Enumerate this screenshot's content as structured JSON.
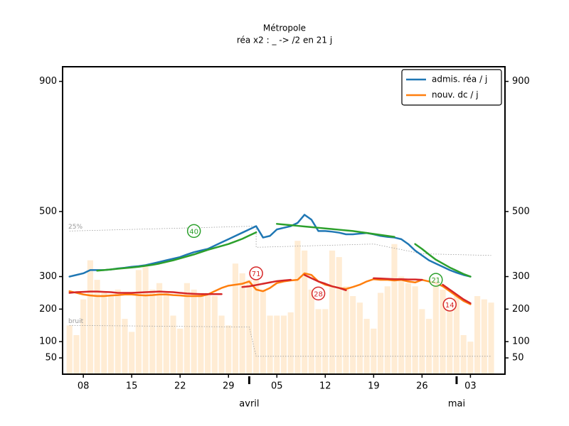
{
  "chart_data": {
    "type": "combo",
    "title": "Métropole",
    "subtitle": "réa x2 : _ -> /2 en 21 j",
    "x": [
      "03-06",
      "03-07",
      "03-08",
      "03-09",
      "03-10",
      "03-11",
      "03-12",
      "03-13",
      "03-14",
      "03-15",
      "03-16",
      "03-17",
      "03-18",
      "03-19",
      "03-20",
      "03-21",
      "03-22",
      "03-23",
      "03-24",
      "03-25",
      "03-26",
      "03-27",
      "03-28",
      "03-29",
      "03-30",
      "03-31",
      "04-01",
      "04-02",
      "04-03",
      "04-04",
      "04-05",
      "04-06",
      "04-07",
      "04-08",
      "04-09",
      "04-10",
      "04-11",
      "04-12",
      "04-13",
      "04-14",
      "04-15",
      "04-16",
      "04-17",
      "04-18",
      "04-19",
      "04-20",
      "04-21",
      "04-22",
      "04-23",
      "04-24",
      "04-25",
      "04-26",
      "04-27",
      "04-28",
      "04-29",
      "04-30",
      "05-01",
      "05-02",
      "05-03",
      "05-04",
      "05-05",
      "05-06"
    ],
    "bars": {
      "color": "#ffe9cc",
      "values": [
        150,
        120,
        230,
        350,
        290,
        250,
        240,
        260,
        170,
        130,
        320,
        330,
        260,
        280,
        250,
        180,
        140,
        280,
        260,
        250,
        250,
        240,
        180,
        150,
        340,
        310,
        290,
        290,
        260,
        180,
        180,
        180,
        190,
        410,
        380,
        260,
        200,
        200,
        380,
        360,
        270,
        240,
        220,
        170,
        140,
        250,
        270,
        400,
        300,
        280,
        270,
        200,
        170,
        300,
        260,
        220,
        240,
        120,
        100,
        240,
        230,
        220
      ]
    },
    "series": [
      {
        "name": "admis. réa / j",
        "color": "#1f77b4",
        "values": [
          300,
          305,
          310,
          320,
          320,
          320,
          322,
          325,
          327,
          330,
          332,
          335,
          340,
          345,
          350,
          355,
          360,
          368,
          375,
          380,
          385,
          395,
          405,
          415,
          425,
          435,
          445,
          455,
          420,
          425,
          445,
          450,
          455,
          465,
          490,
          475,
          440,
          440,
          438,
          435,
          430,
          430,
          432,
          434,
          430,
          425,
          422,
          420,
          415,
          400,
          380,
          365,
          350,
          340,
          330,
          320,
          312,
          305,
          300,
          null,
          null,
          null
        ]
      },
      {
        "name": "nouv. dc / j",
        "color": "#ff7f0e",
        "values": [
          255,
          250,
          245,
          242,
          240,
          240,
          242,
          243,
          245,
          245,
          243,
          242,
          243,
          245,
          245,
          243,
          242,
          240,
          240,
          240,
          245,
          255,
          265,
          272,
          275,
          278,
          285,
          260,
          255,
          265,
          280,
          285,
          288,
          290,
          310,
          305,
          285,
          275,
          270,
          265,
          262,
          268,
          275,
          285,
          292,
          290,
          290,
          288,
          290,
          285,
          282,
          290,
          285,
          280,
          270,
          255,
          240,
          225,
          215,
          null,
          null,
          null
        ]
      },
      {
        "color": "#2ca02c",
        "values": [
          null,
          null,
          null,
          null,
          318,
          320,
          322,
          324,
          326,
          328,
          330,
          333,
          336,
          340,
          345,
          350,
          356,
          362,
          368,
          375,
          382,
          388,
          394,
          400,
          408,
          416,
          426,
          436,
          null,
          null,
          462,
          460,
          458,
          456,
          454,
          452,
          450,
          448,
          446,
          444,
          442,
          440,
          437,
          434,
          431,
          428,
          425,
          422,
          null,
          null,
          400,
          385,
          368,
          352,
          340,
          328,
          318,
          308,
          300,
          null,
          null,
          null
        ]
      },
      {
        "color": "#d62728",
        "values": [
          250,
          252,
          253,
          254,
          254,
          253,
          252,
          250,
          250,
          250,
          251,
          252,
          253,
          254,
          253,
          252,
          250,
          248,
          247,
          246,
          246,
          246,
          246,
          null,
          null,
          268,
          270,
          274,
          278,
          282,
          286,
          288,
          290,
          null,
          305,
          295,
          285,
          278,
          270,
          265,
          258,
          null,
          null,
          null,
          295,
          294,
          293,
          292,
          292,
          291,
          291,
          290,
          null,
          null,
          275,
          260,
          245,
          230,
          218,
          null,
          null,
          null
        ]
      }
    ],
    "reference_lines": [
      {
        "label": "25%",
        "color": "#999999",
        "x": [
          "03-06",
          "04-02",
          "04-02",
          "04-19",
          "04-26",
          "05-06"
        ],
        "values": [
          440,
          455,
          390,
          400,
          370,
          365
        ]
      },
      {
        "label": "bruit",
        "color": "#999999",
        "x": [
          "03-06",
          "04-01",
          "04-02",
          "05-06"
        ],
        "values": [
          150,
          145,
          55,
          55
        ]
      }
    ],
    "annotations": [
      {
        "value": 40,
        "x": "03-24",
        "y": 440,
        "color": "#2ca02c"
      },
      {
        "value": 71,
        "x": "04-02",
        "y": 310,
        "color": "#d62728"
      },
      {
        "value": 28,
        "x": "04-11",
        "y": 248,
        "color": "#d62728"
      },
      {
        "value": 21,
        "x": "04-28",
        "y": 290,
        "color": "#2ca02c"
      },
      {
        "value": 14,
        "x": "04-30",
        "y": 214,
        "color": "#d62728"
      }
    ],
    "xlim": [
      "03-05",
      "05-08"
    ],
    "xticks": [
      {
        "value": "03-08",
        "label": "08"
      },
      {
        "value": "03-15",
        "label": "15"
      },
      {
        "value": "03-22",
        "label": "22"
      },
      {
        "value": "03-29",
        "label": "29"
      },
      {
        "value": "04-05",
        "label": "05"
      },
      {
        "value": "04-12",
        "label": "12"
      },
      {
        "value": "04-19",
        "label": "19"
      },
      {
        "value": "04-26",
        "label": "26"
      },
      {
        "value": "05-03",
        "label": "03"
      }
    ],
    "months": [
      {
        "value": "04-01",
        "label": "avril"
      },
      {
        "value": "05-01",
        "label": "mai"
      }
    ],
    "ylim": [
      0,
      945
    ],
    "yticks": [
      50,
      100,
      200,
      300,
      500,
      900
    ],
    "legend": "upper right"
  }
}
